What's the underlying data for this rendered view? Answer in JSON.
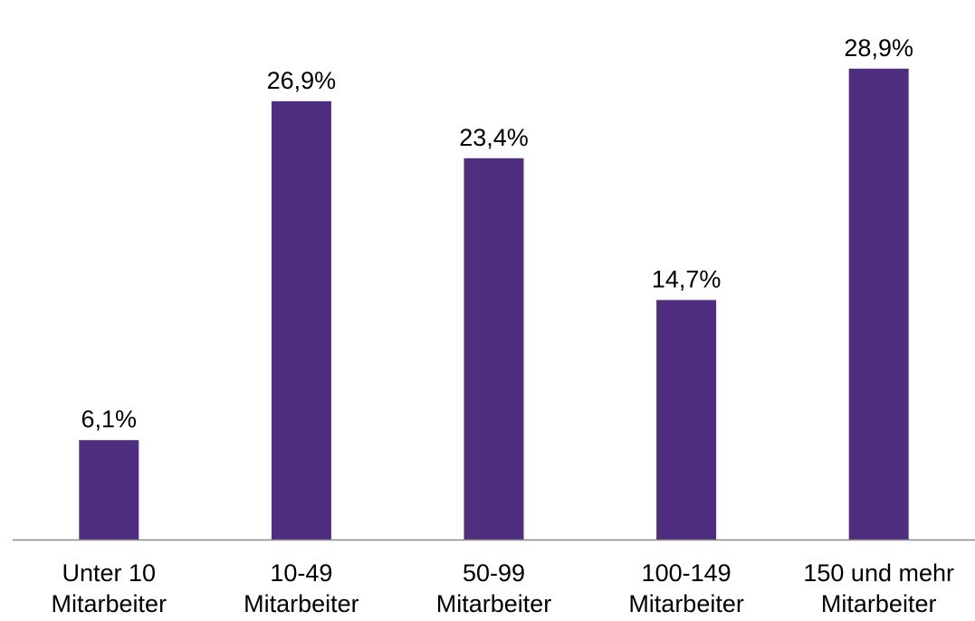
{
  "chart_data": {
    "type": "bar",
    "categories": [
      [
        "Unter 10",
        "Mitarbeiter"
      ],
      [
        "10-49",
        "Mitarbeiter"
      ],
      [
        "50-99",
        "Mitarbeiter"
      ],
      [
        "100-149",
        "Mitarbeiter"
      ],
      [
        "150 und mehr",
        "Mitarbeiter"
      ]
    ],
    "values": [
      6.1,
      26.9,
      23.4,
      14.7,
      28.9
    ],
    "data_labels": [
      "6,1%",
      "26,9%",
      "23,4%",
      "14,7%",
      "28,9%"
    ],
    "unit": "%",
    "ylim": [
      0,
      31
    ],
    "grid": false,
    "legend": "none",
    "bar_color": "#4f2d7f",
    "axis_color": "#898989"
  }
}
